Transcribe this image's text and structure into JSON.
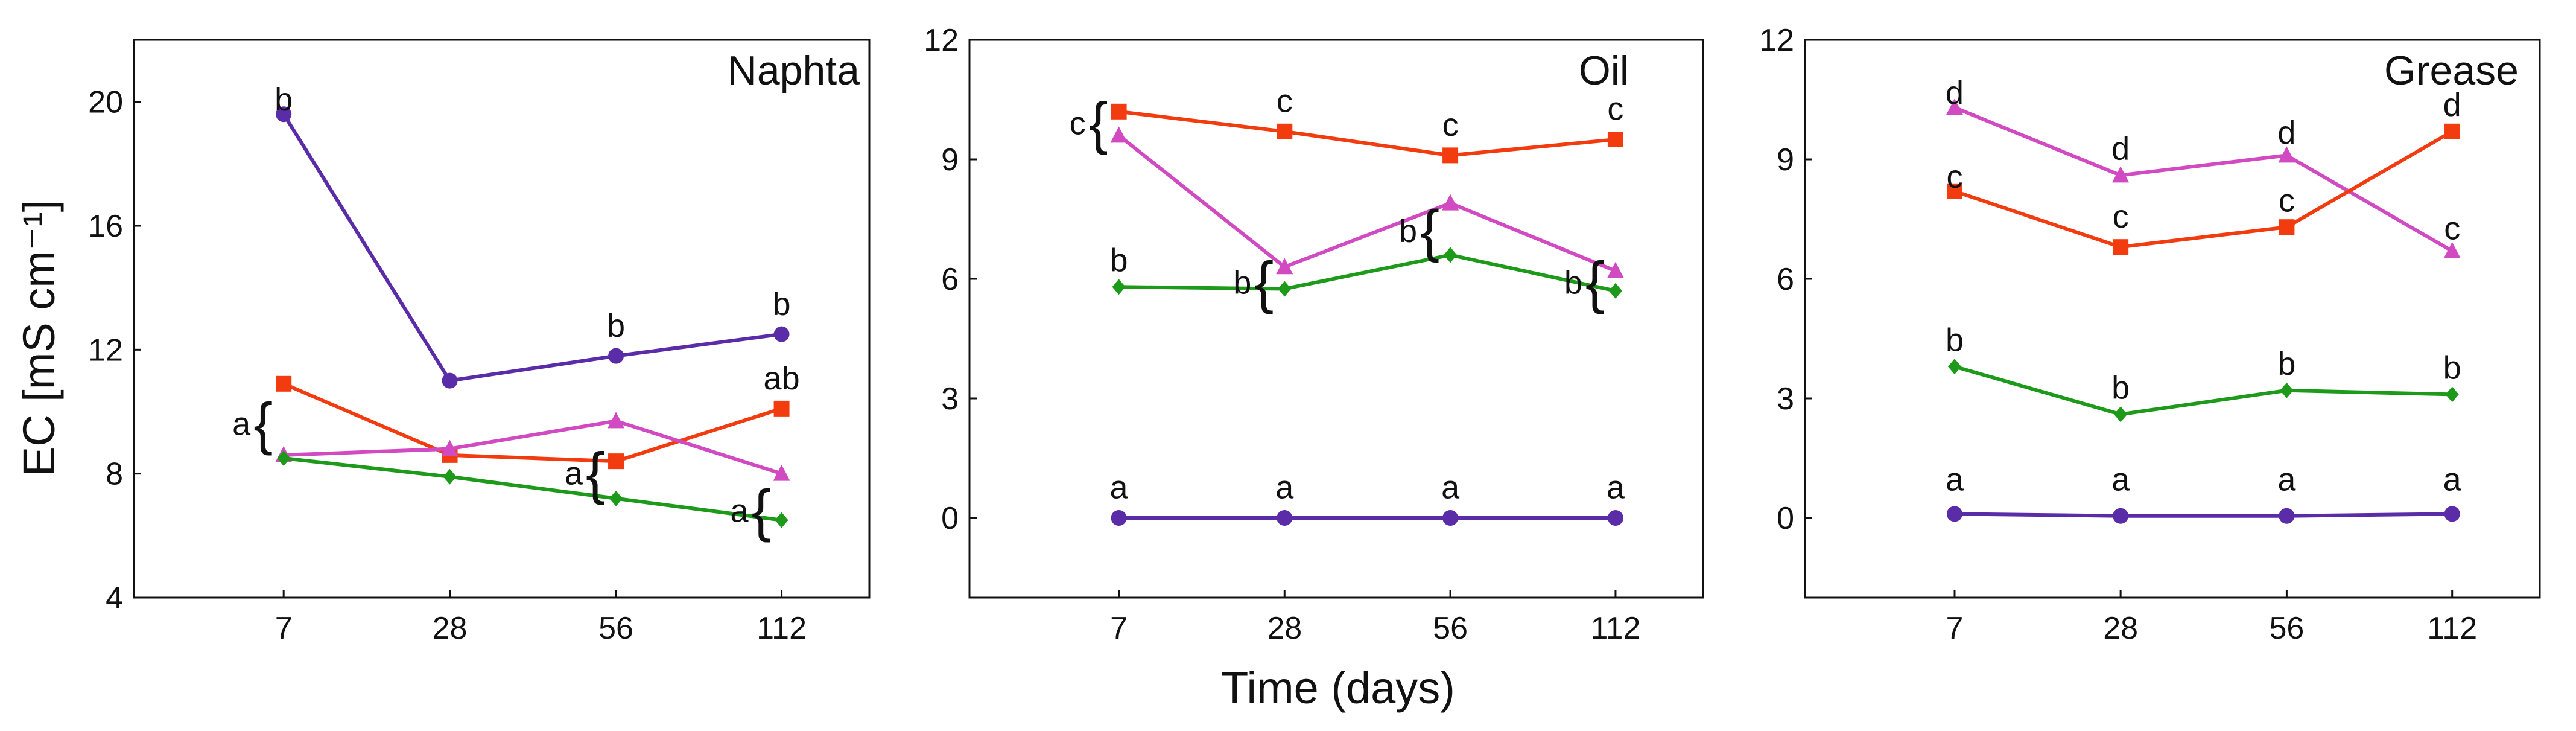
{
  "chart_data": {
    "type": "line",
    "shared_ylabel": "EC [mS cm⁻¹]",
    "shared_xlabel": "Time (days)",
    "categories": [
      "7",
      "28",
      "56",
      "112"
    ],
    "panels": [
      {
        "title": "Naphta",
        "ylim": [
          4,
          22
        ],
        "yticks": [
          "4",
          "8",
          "12",
          "16",
          "20"
        ],
        "series": [
          {
            "color": "#5b2ca8",
            "marker": "circle",
            "values": [
              19.6,
              11.0,
              11.8,
              12.5
            ]
          },
          {
            "color": "#f23c0f",
            "marker": "square",
            "values": [
              10.9,
              8.6,
              8.4,
              10.1
            ]
          },
          {
            "color": "#d24ac2",
            "marker": "triangle",
            "values": [
              8.6,
              8.8,
              9.7,
              8.0
            ]
          },
          {
            "color": "#1e9a1a",
            "marker": "diamond",
            "values": [
              8.5,
              7.9,
              7.2,
              6.5
            ]
          }
        ],
        "annotations": [
          {
            "text": "b",
            "cat": 0,
            "y": 19.6
          },
          {
            "text": "b",
            "cat": 2,
            "y": 12.3
          },
          {
            "text": "b",
            "cat": 3,
            "y": 13.0
          },
          {
            "text": "ab",
            "cat": 3,
            "y": 10.6
          },
          {
            "text": "a",
            "cat": 0,
            "y": 9.6
          },
          {
            "text": "a",
            "cat": 2,
            "y": 8.0
          },
          {
            "text": "a",
            "cat": 3,
            "y": 6.8
          }
        ],
        "braces": [
          {
            "cat": 0,
            "y": 9.6
          },
          {
            "cat": 2,
            "y": 8.0
          },
          {
            "cat": 3,
            "y": 6.8
          }
        ]
      },
      {
        "title": "Oil",
        "ylim": [
          -2,
          12
        ],
        "yticks": [
          "0",
          "3",
          "6",
          "9",
          "12"
        ],
        "series": [
          {
            "color": "#f23c0f",
            "marker": "square",
            "values": [
              10.2,
              9.7,
              9.1,
              9.5
            ]
          },
          {
            "color": "#d24ac2",
            "marker": "triangle",
            "values": [
              9.6,
              6.3,
              7.9,
              6.2
            ]
          },
          {
            "color": "#1e9a1a",
            "marker": "diamond",
            "values": [
              5.8,
              5.75,
              6.6,
              5.7
            ]
          },
          {
            "color": "#5b2ca8",
            "marker": "circle",
            "values": [
              0.0,
              0.0,
              0.0,
              0.0
            ]
          }
        ],
        "annotations": [
          {
            "text": "c",
            "cat": 0,
            "y": 9.9
          },
          {
            "text": "c",
            "cat": 1,
            "y": 10.1
          },
          {
            "text": "c",
            "cat": 2,
            "y": 9.5
          },
          {
            "text": "c",
            "cat": 3,
            "y": 9.9
          },
          {
            "text": "b",
            "cat": 0,
            "y": 6.1
          },
          {
            "text": "b",
            "cat": 1,
            "y": 5.9
          },
          {
            "text": "b",
            "cat": 2,
            "y": 7.2
          },
          {
            "text": "b",
            "cat": 3,
            "y": 5.9
          },
          {
            "text": "a",
            "cat": 0,
            "y": 0.4
          },
          {
            "text": "a",
            "cat": 1,
            "y": 0.4
          },
          {
            "text": "a",
            "cat": 2,
            "y": 0.4
          },
          {
            "text": "a",
            "cat": 3,
            "y": 0.4
          }
        ],
        "braces": [
          {
            "cat": 0,
            "y": 9.9
          },
          {
            "cat": 1,
            "y": 5.9
          },
          {
            "cat": 2,
            "y": 7.2
          },
          {
            "cat": 3,
            "y": 5.9
          }
        ]
      },
      {
        "title": "Grease",
        "ylim": [
          -2,
          12
        ],
        "yticks": [
          "0",
          "3",
          "6",
          "9",
          "12"
        ],
        "series": [
          {
            "color": "#d24ac2",
            "marker": "triangle",
            "values": [
              10.3,
              8.6,
              9.1,
              6.7
            ]
          },
          {
            "color": "#f23c0f",
            "marker": "square",
            "values": [
              8.2,
              6.8,
              7.3,
              9.7
            ]
          },
          {
            "color": "#1e9a1a",
            "marker": "diamond",
            "values": [
              3.8,
              2.6,
              3.2,
              3.1
            ]
          },
          {
            "color": "#5b2ca8",
            "marker": "circle",
            "values": [
              0.1,
              0.05,
              0.05,
              0.1
            ]
          }
        ],
        "annotations": [
          {
            "text": "d",
            "cat": 0,
            "y": 10.3
          },
          {
            "text": "d",
            "cat": 1,
            "y": 8.9
          },
          {
            "text": "d",
            "cat": 2,
            "y": 9.3
          },
          {
            "text": "d",
            "cat": 3,
            "y": 10.0
          },
          {
            "text": "c",
            "cat": 0,
            "y": 8.2
          },
          {
            "text": "c",
            "cat": 1,
            "y": 7.2
          },
          {
            "text": "c",
            "cat": 2,
            "y": 7.6
          },
          {
            "text": "c",
            "cat": 3,
            "y": 6.9
          },
          {
            "text": "b",
            "cat": 0,
            "y": 4.1
          },
          {
            "text": "b",
            "cat": 1,
            "y": 2.9
          },
          {
            "text": "b",
            "cat": 2,
            "y": 3.5
          },
          {
            "text": "b",
            "cat": 3,
            "y": 3.4
          },
          {
            "text": "a",
            "cat": 0,
            "y": 0.6
          },
          {
            "text": "a",
            "cat": 1,
            "y": 0.6
          },
          {
            "text": "a",
            "cat": 2,
            "y": 0.6
          },
          {
            "text": "a",
            "cat": 3,
            "y": 0.6
          }
        ],
        "braces": []
      }
    ]
  }
}
